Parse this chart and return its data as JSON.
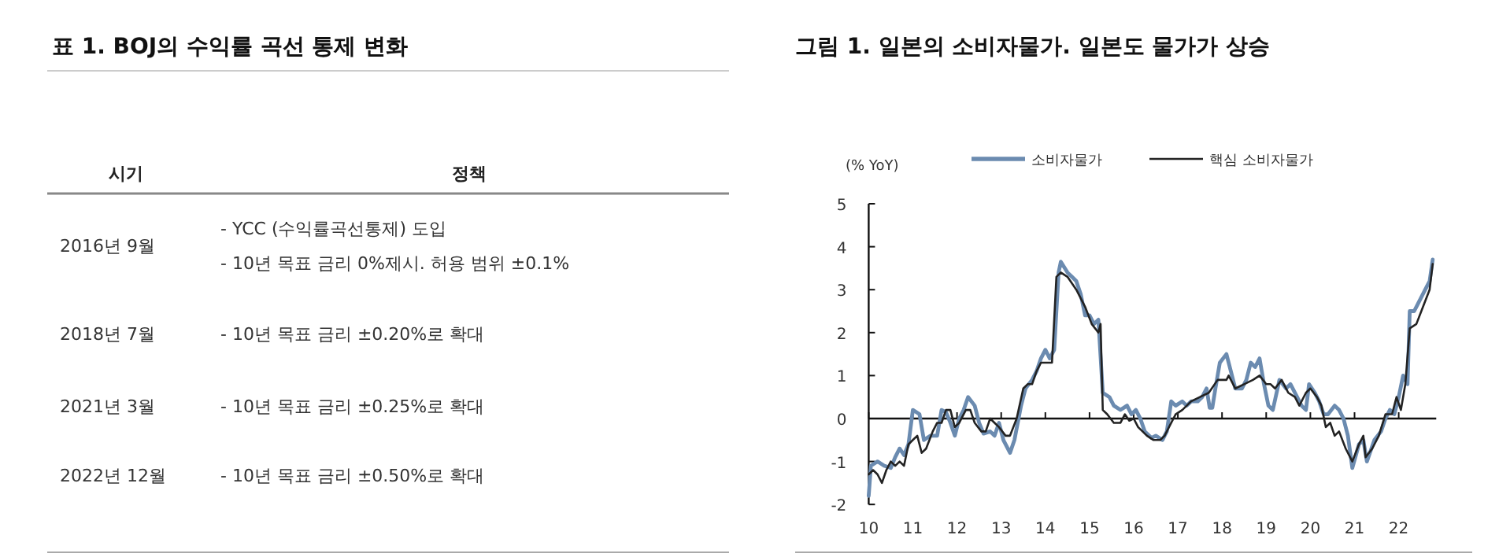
{
  "chart_data": [
    {
      "type": "other",
      "title": "표 1. BOJ의 수익률 곡선 통제 변화",
      "categories": [
        "2016년 9월",
        "2018년 7월",
        "2021년 3월",
        "2022년 12월"
      ],
      "annotations": [
        "시기",
        "정책",
        "- YCC (수익률곡선통제) 도입\n- 10년 목표 금리 0%제시. 허용 범위 ±0.1%",
        "- 10년 목표 금리 ±0.20%로 확대",
        "- 10년 목표 금리 ±0.25%로 확대",
        "- 10년 목표 금리 ±0.50%로 확대"
      ]
    },
    {
      "type": "line",
      "title": "그림 1. 일본의 소비자물가. 일본도 물가가 상승",
      "ylabel": "(% YoY)",
      "legend": "top",
      "xlim": [
        2010,
        2022.85
      ],
      "ylim": [
        -2,
        5
      ],
      "xticks": [
        {
          "value": 2010,
          "label": "10"
        },
        {
          "value": 2011,
          "label": "11"
        },
        {
          "value": 2012,
          "label": "12"
        },
        {
          "value": 2013,
          "label": "13"
        },
        {
          "value": 2014,
          "label": "14"
        },
        {
          "value": 2015,
          "label": "15"
        },
        {
          "value": 2016,
          "label": "16"
        },
        {
          "value": 2017,
          "label": "17"
        },
        {
          "value": 2018,
          "label": "18"
        },
        {
          "value": 2019,
          "label": "19"
        },
        {
          "value": 2020,
          "label": "20"
        },
        {
          "value": 2021,
          "label": "21"
        },
        {
          "value": 2022,
          "label": "22"
        }
      ],
      "yticks": [
        -2,
        -1,
        0,
        1,
        2,
        3,
        4,
        5
      ],
      "series": [
        {
          "name": "소비자물가",
          "color": "#6b8bb0",
          "x": [
            2010.0,
            2010.05,
            2010.2,
            2010.35,
            2010.5,
            2010.6,
            2010.7,
            2010.8,
            2010.9,
            2011.0,
            2011.15,
            2011.25,
            2011.4,
            2011.55,
            2011.65,
            2011.75,
            2011.85,
            2011.95,
            2012.05,
            2012.15,
            2012.25,
            2012.4,
            2012.5,
            2012.6,
            2012.75,
            2012.85,
            2012.95,
            2013.05,
            2013.2,
            2013.3,
            2013.45,
            2013.55,
            2013.7,
            2013.8,
            2013.9,
            2014.0,
            2014.1,
            2014.2,
            2014.3,
            2014.35,
            2014.5,
            2014.6,
            2014.7,
            2014.8,
            2014.9,
            2015.0,
            2015.1,
            2015.2,
            2015.3,
            2015.45,
            2015.55,
            2015.7,
            2015.85,
            2015.95,
            2016.05,
            2016.15,
            2016.25,
            2016.4,
            2016.5,
            2016.65,
            2016.75,
            2016.85,
            2016.95,
            2017.1,
            2017.2,
            2017.3,
            2017.45,
            2017.55,
            2017.65,
            2017.72,
            2017.78,
            2017.85,
            2017.95,
            2018.1,
            2018.2,
            2018.3,
            2018.45,
            2018.55,
            2018.65,
            2018.75,
            2018.85,
            2018.95,
            2019.05,
            2019.15,
            2019.3,
            2019.45,
            2019.55,
            2019.7,
            2019.8,
            2019.9,
            2019.97,
            2020.1,
            2020.2,
            2020.3,
            2020.4,
            2020.55,
            2020.65,
            2020.75,
            2020.85,
            2020.95,
            2021.1,
            2021.2,
            2021.28,
            2021.45,
            2021.6,
            2021.7,
            2021.8,
            2021.9,
            2022.0,
            2022.1,
            2022.2,
            2022.25,
            2022.35,
            2022.5,
            2022.6,
            2022.7,
            2022.77
          ],
          "values": [
            -1.8,
            -1.1,
            -1.0,
            -1.1,
            -1.15,
            -0.9,
            -0.7,
            -0.85,
            -0.6,
            0.2,
            0.1,
            -0.5,
            -0.4,
            -0.4,
            0.2,
            0.15,
            -0.1,
            -0.4,
            0.0,
            0.2,
            0.5,
            0.3,
            -0.1,
            -0.35,
            -0.3,
            -0.4,
            -0.1,
            -0.5,
            -0.8,
            -0.5,
            0.3,
            0.7,
            0.9,
            1.1,
            1.4,
            1.6,
            1.4,
            1.6,
            3.4,
            3.65,
            3.4,
            3.3,
            3.2,
            2.9,
            2.4,
            2.4,
            2.2,
            2.3,
            0.6,
            0.5,
            0.3,
            0.2,
            0.3,
            0.1,
            0.2,
            0.0,
            -0.3,
            -0.45,
            -0.4,
            -0.5,
            -0.3,
            0.4,
            0.3,
            0.4,
            0.3,
            0.4,
            0.4,
            0.5,
            0.7,
            0.25,
            0.25,
            0.7,
            1.3,
            1.5,
            1.1,
            0.7,
            0.7,
            0.9,
            1.3,
            1.2,
            1.4,
            0.8,
            0.3,
            0.2,
            0.9,
            0.7,
            0.8,
            0.5,
            0.3,
            0.2,
            0.8,
            0.6,
            0.4,
            0.1,
            0.1,
            0.3,
            0.2,
            0.0,
            -0.4,
            -1.15,
            -0.6,
            -0.5,
            -1.0,
            -0.5,
            -0.3,
            0.0,
            0.2,
            0.1,
            0.5,
            1.0,
            0.8,
            2.5,
            2.5,
            2.8,
            3.0,
            3.2,
            3.7
          ]
        },
        {
          "name": "핵심 소비자물가",
          "color": "#222222",
          "x": [
            2010.0,
            2010.1,
            2010.2,
            2010.3,
            2010.4,
            2010.5,
            2010.6,
            2010.7,
            2010.8,
            2010.9,
            2011.0,
            2011.1,
            2011.2,
            2011.3,
            2011.45,
            2011.55,
            2011.65,
            2011.75,
            2011.85,
            2011.95,
            2012.05,
            2012.2,
            2012.3,
            2012.4,
            2012.55,
            2012.65,
            2012.75,
            2012.85,
            2012.95,
            2013.1,
            2013.2,
            2013.35,
            2013.5,
            2013.6,
            2013.7,
            2013.8,
            2013.9,
            2014.0,
            2014.15,
            2014.25,
            2014.35,
            2014.5,
            2014.7,
            2014.9,
            2015.05,
            2015.2,
            2015.25,
            2015.3,
            2015.4,
            2015.55,
            2015.7,
            2015.8,
            2015.9,
            2016.0,
            2016.1,
            2016.3,
            2016.45,
            2016.6,
            2016.7,
            2016.85,
            2016.95,
            2017.1,
            2017.3,
            2017.5,
            2017.7,
            2017.9,
            2018.1,
            2018.15,
            2018.3,
            2018.5,
            2018.7,
            2018.85,
            2019.0,
            2019.1,
            2019.2,
            2019.35,
            2019.5,
            2019.65,
            2019.75,
            2019.9,
            2020.0,
            2020.15,
            2020.25,
            2020.35,
            2020.45,
            2020.55,
            2020.65,
            2020.8,
            2020.95,
            2021.1,
            2021.2,
            2021.25,
            2021.4,
            2021.55,
            2021.7,
            2021.85,
            2021.95,
            2022.05,
            2022.15,
            2022.25,
            2022.4,
            2022.55,
            2022.7,
            2022.77
          ],
          "values": [
            -1.3,
            -1.2,
            -1.3,
            -1.5,
            -1.2,
            -1.0,
            -1.1,
            -1.0,
            -1.1,
            -0.6,
            -0.5,
            -0.4,
            -0.8,
            -0.7,
            -0.3,
            -0.1,
            -0.1,
            0.2,
            0.2,
            -0.2,
            -0.1,
            0.2,
            0.2,
            -0.1,
            -0.3,
            -0.3,
            0.0,
            -0.1,
            -0.2,
            -0.4,
            -0.4,
            0.0,
            0.7,
            0.8,
            0.8,
            1.1,
            1.3,
            1.3,
            1.3,
            3.3,
            3.4,
            3.3,
            3.0,
            2.6,
            2.2,
            2.0,
            2.2,
            0.2,
            0.1,
            -0.1,
            -0.1,
            0.1,
            -0.05,
            0.0,
            -0.2,
            -0.4,
            -0.5,
            -0.5,
            -0.4,
            -0.1,
            0.1,
            0.2,
            0.4,
            0.5,
            0.6,
            0.9,
            0.9,
            1.0,
            0.7,
            0.8,
            0.9,
            1.0,
            0.8,
            0.8,
            0.7,
            0.9,
            0.6,
            0.5,
            0.3,
            0.6,
            0.7,
            0.5,
            0.3,
            -0.2,
            -0.1,
            -0.4,
            -0.3,
            -0.7,
            -1.0,
            -0.6,
            -0.4,
            -0.9,
            -0.7,
            -0.4,
            0.1,
            0.1,
            0.5,
            0.2,
            0.8,
            2.1,
            2.2,
            2.6,
            3.0,
            3.6
          ]
        }
      ]
    }
  ]
}
